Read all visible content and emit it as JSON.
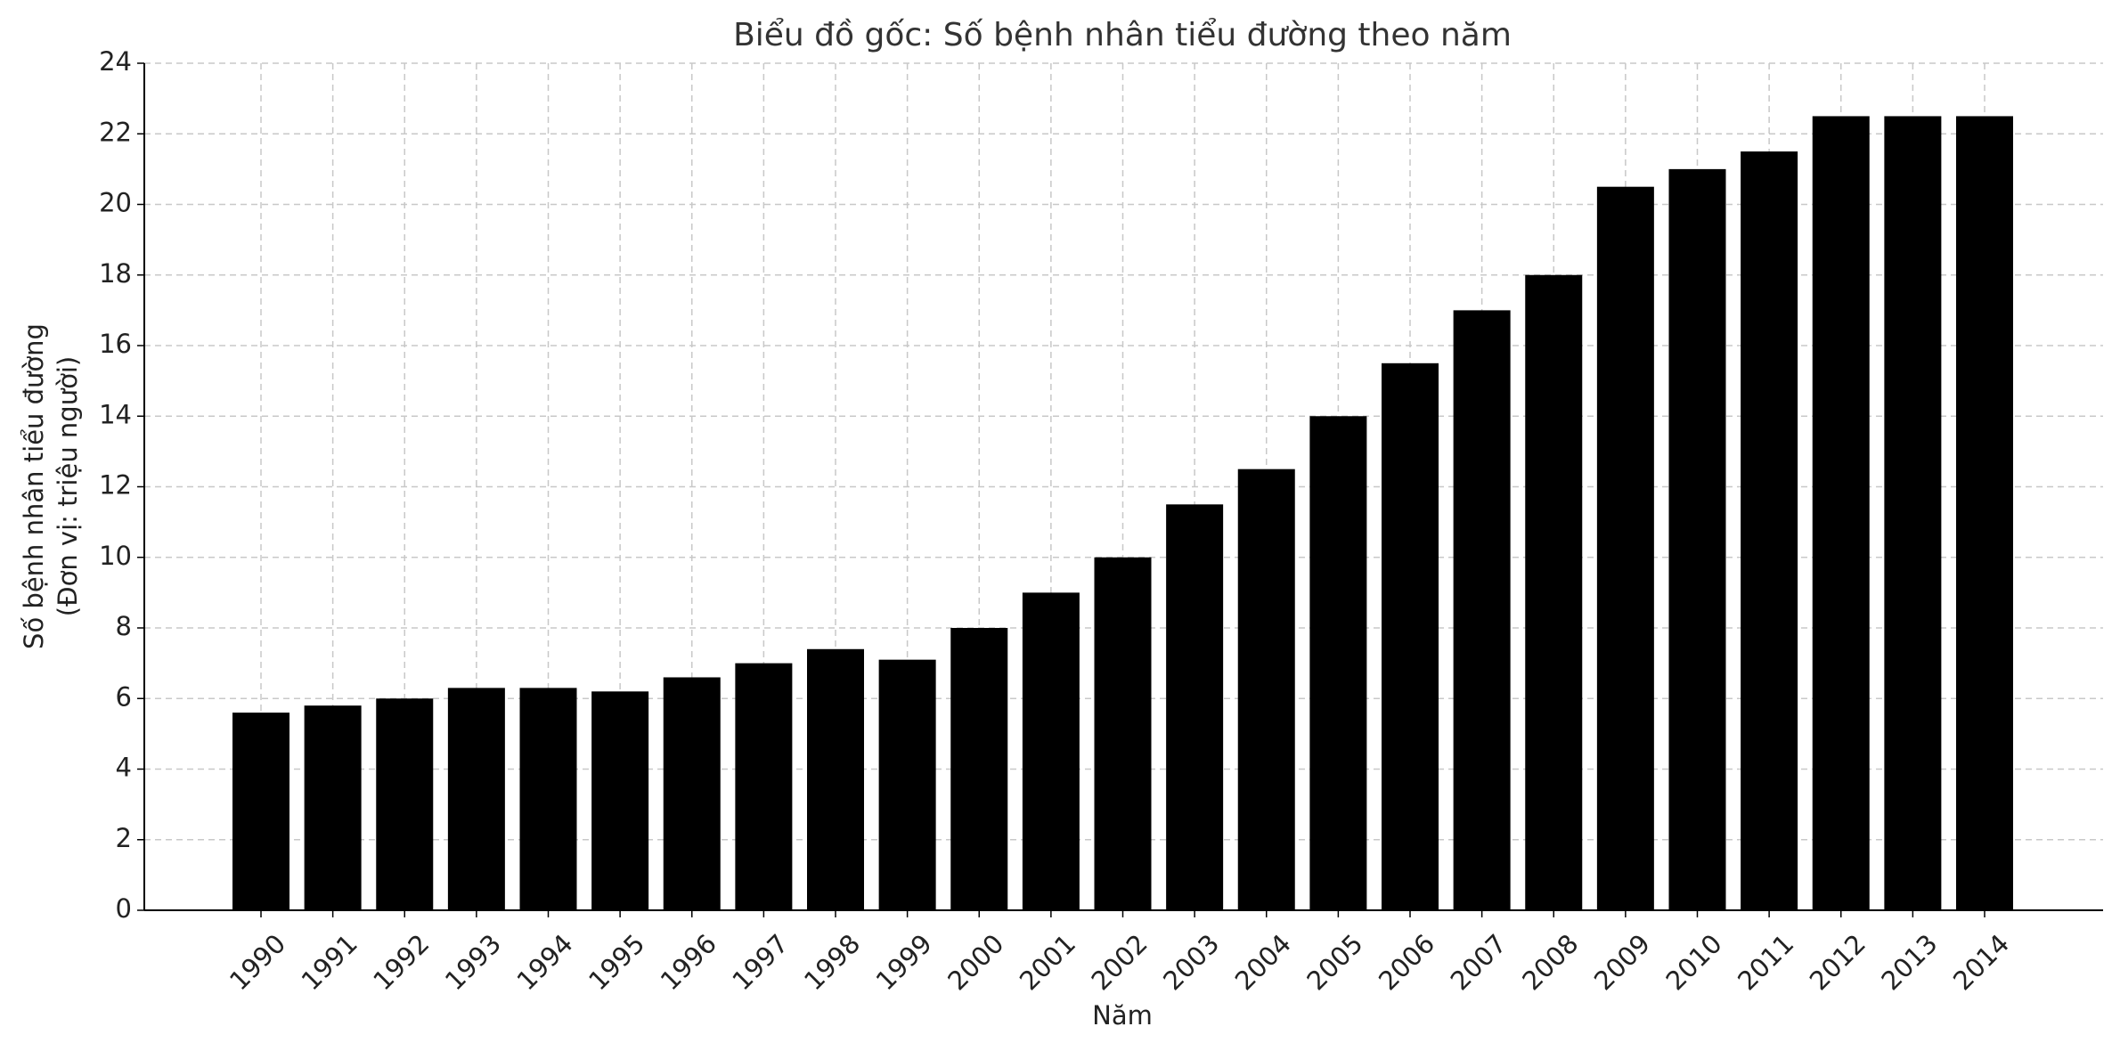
{
  "chart_data": {
    "type": "bar",
    "title": "Biểu đồ gốc: Số bệnh nhân tiểu đường theo năm",
    "xlabel": "Năm",
    "ylabel": [
      "Số bệnh nhân tiểu đường",
      "(Đơn vị: triệu người)"
    ],
    "categories": [
      "1990",
      "1991",
      "1992",
      "1993",
      "1994",
      "1995",
      "1996",
      "1997",
      "1998",
      "1999",
      "2000",
      "2001",
      "2002",
      "2003",
      "2004",
      "2005",
      "2006",
      "2007",
      "2008",
      "2009",
      "2010",
      "2011",
      "2012",
      "2013",
      "2014"
    ],
    "values": [
      5.6,
      5.8,
      6.0,
      6.3,
      6.3,
      6.2,
      6.6,
      7.0,
      7.4,
      7.1,
      8.0,
      9.0,
      10.0,
      11.5,
      12.5,
      14.0,
      15.5,
      17.0,
      18.0,
      20.5,
      21.0,
      21.5,
      22.5,
      22.5,
      22.5
    ],
    "color": "#000000",
    "ylim": [
      0,
      24
    ],
    "yticks": [
      0,
      2,
      4,
      6,
      8,
      10,
      12,
      14,
      16,
      18,
      20,
      22,
      24
    ],
    "grid": true
  }
}
